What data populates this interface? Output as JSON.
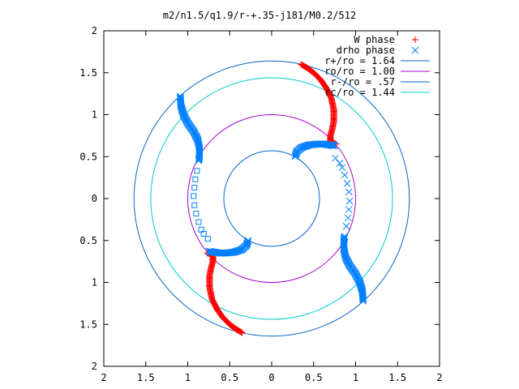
{
  "chart_data": {
    "type": "scatter",
    "title": "m2/n1.5/q1.9/r-+.35-j181/M0.2/512",
    "xlim": [
      -2,
      2
    ],
    "ylim": [
      -2,
      2
    ],
    "x_ticks": [
      -2,
      -1.5,
      -1,
      -0.5,
      0,
      0.5,
      1,
      1.5,
      2
    ],
    "y_ticks": [
      -2,
      -1.5,
      -1,
      -0.5,
      0,
      0.5,
      1,
      1.5,
      2
    ],
    "x_tick_labels": [
      "2",
      "1.5",
      "1",
      "0.5",
      "0",
      "0.5",
      "1",
      "1.5",
      "2"
    ],
    "y_tick_labels": [
      "2",
      "1.5",
      "1",
      "0.5",
      "0",
      "0.5",
      "1",
      "1.5",
      "2"
    ],
    "grid": false,
    "legend_position": "top-right",
    "legend": [
      {
        "label": "W phase",
        "kind": "marker",
        "marker": "plus",
        "color": "#ff0000"
      },
      {
        "label": "drho phase",
        "kind": "marker",
        "marker": "cross",
        "color": "#0080ff"
      },
      {
        "label": "r+/ro = 1.64",
        "kind": "line",
        "color": "#0066cc"
      },
      {
        "label": "ro/ro = 1.00",
        "kind": "line",
        "color": "#aa00cc"
      },
      {
        "label": "r-/ro = .57",
        "kind": "line",
        "color": "#0066cc"
      },
      {
        "label": "rc/ro = 1.44",
        "kind": "line",
        "color": "#00cccc"
      }
    ],
    "circles": [
      {
        "name": "r+/ro",
        "radius": 1.64,
        "color": "#0066cc"
      },
      {
        "name": "ro/ro",
        "radius": 1.0,
        "color": "#aa00cc"
      },
      {
        "name": "r-/ro",
        "radius": 0.57,
        "color": "#0066cc"
      },
      {
        "name": "rc/ro",
        "radius": 1.44,
        "color": "#00cccc"
      }
    ],
    "series": [
      {
        "name": "W phase",
        "marker": "plus",
        "color": "#ff0000",
        "arms": [
          [
            [
              0.35,
              1.6
            ],
            [
              0.42,
              1.56
            ],
            [
              0.5,
              1.5
            ],
            [
              0.58,
              1.42
            ],
            [
              0.65,
              1.32
            ],
            [
              0.71,
              1.2
            ],
            [
              0.74,
              1.06
            ],
            [
              0.74,
              0.92
            ],
            [
              0.72,
              0.82
            ],
            [
              0.7,
              0.75
            ],
            [
              0.7,
              0.69
            ],
            [
              0.73,
              0.66
            ],
            [
              0.77,
              0.65
            ]
          ],
          [
            [
              -0.35,
              -1.6
            ],
            [
              -0.42,
              -1.56
            ],
            [
              -0.5,
              -1.5
            ],
            [
              -0.58,
              -1.42
            ],
            [
              -0.65,
              -1.32
            ],
            [
              -0.71,
              -1.2
            ],
            [
              -0.74,
              -1.06
            ],
            [
              -0.74,
              -0.92
            ],
            [
              -0.72,
              -0.82
            ],
            [
              -0.7,
              -0.75
            ],
            [
              -0.7,
              -0.69
            ],
            [
              -0.73,
              -0.66
            ],
            [
              -0.77,
              -0.65
            ]
          ]
        ]
      },
      {
        "name": "drho phase",
        "marker": "cross",
        "color": "#0080ff",
        "arms": [
          [
            [
              -1.09,
              1.22
            ],
            [
              -1.08,
              1.1
            ],
            [
              -1.05,
              1.0
            ],
            [
              -1.0,
              0.9
            ],
            [
              -0.93,
              0.8
            ],
            [
              -0.88,
              0.7
            ],
            [
              -0.86,
              0.6
            ],
            [
              -0.86,
              0.5
            ],
            [
              -0.87,
              0.45
            ]
          ],
          [
            [
              1.09,
              -1.22
            ],
            [
              1.08,
              -1.1
            ],
            [
              1.05,
              -1.0
            ],
            [
              1.0,
              -0.9
            ],
            [
              0.93,
              -0.8
            ],
            [
              0.88,
              -0.7
            ],
            [
              0.86,
              -0.6
            ],
            [
              0.86,
              -0.5
            ],
            [
              0.87,
              -0.45
            ]
          ],
          [
            [
              0.28,
              0.5
            ],
            [
              0.3,
              0.56
            ],
            [
              0.36,
              0.61
            ],
            [
              0.45,
              0.64
            ],
            [
              0.55,
              0.65
            ],
            [
              0.62,
              0.65
            ],
            [
              0.68,
              0.64
            ],
            [
              0.75,
              0.63
            ]
          ],
          [
            [
              -0.28,
              -0.5
            ],
            [
              -0.3,
              -0.56
            ],
            [
              -0.36,
              -0.61
            ],
            [
              -0.45,
              -0.64
            ],
            [
              -0.55,
              -0.65
            ],
            [
              -0.62,
              -0.65
            ],
            [
              -0.68,
              -0.64
            ],
            [
              -0.75,
              -0.63
            ]
          ]
        ],
        "scattered": [
          [
            -0.89,
            0.33
          ],
          [
            -0.91,
            0.23
          ],
          [
            -0.92,
            0.13
          ],
          [
            -0.93,
            0.03
          ],
          [
            -0.92,
            -0.08
          ],
          [
            -0.9,
            -0.18
          ],
          [
            -0.87,
            -0.28
          ],
          [
            -0.84,
            -0.37
          ],
          [
            -0.81,
            -0.42
          ],
          [
            -0.76,
            -0.48
          ],
          [
            0.89,
            -0.33
          ],
          [
            0.91,
            -0.23
          ],
          [
            0.92,
            -0.13
          ],
          [
            0.93,
            -0.03
          ],
          [
            0.92,
            0.08
          ],
          [
            0.9,
            0.18
          ],
          [
            0.87,
            0.28
          ],
          [
            0.84,
            0.37
          ],
          [
            0.81,
            0.42
          ],
          [
            0.76,
            0.48
          ]
        ]
      }
    ]
  }
}
